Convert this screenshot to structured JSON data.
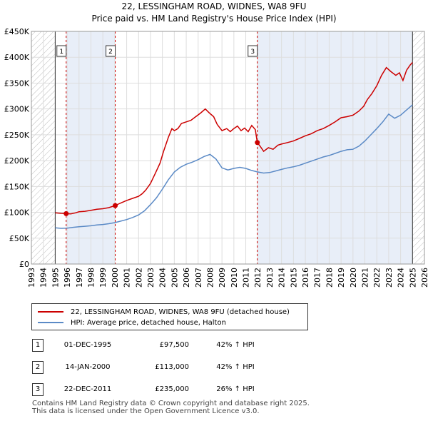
{
  "chart_data": {
    "type": "line",
    "title": "22, LESSINGHAM ROAD, WIDNES, WA8 9FU",
    "subtitle": "Price paid vs. HM Land Registry's House Price Index (HPI)",
    "xlim": [
      1993,
      2026
    ],
    "ylim": [
      0,
      450000
    ],
    "x_ticks": [
      "1993",
      "1994",
      "1995",
      "1996",
      "1997",
      "1998",
      "1999",
      "2000",
      "2001",
      "2002",
      "2003",
      "2004",
      "2005",
      "2006",
      "2007",
      "2008",
      "2009",
      "2010",
      "2011",
      "2012",
      "2013",
      "2014",
      "2015",
      "2016",
      "2017",
      "2018",
      "2019",
      "2020",
      "2021",
      "2022",
      "2023",
      "2024",
      "2025",
      "2026"
    ],
    "y_ticks": [
      {
        "value": 0,
        "label": "£0"
      },
      {
        "value": 50000,
        "label": "£50K"
      },
      {
        "value": 100000,
        "label": "£100K"
      },
      {
        "value": 150000,
        "label": "£150K"
      },
      {
        "value": 200000,
        "label": "£200K"
      },
      {
        "value": 250000,
        "label": "£250K"
      },
      {
        "value": 300000,
        "label": "£300K"
      },
      {
        "value": 350000,
        "label": "£350K"
      },
      {
        "value": 400000,
        "label": "£400K"
      },
      {
        "value": 450000,
        "label": "£450K"
      }
    ],
    "hatched_ranges": [
      [
        1993,
        1995.0
      ],
      [
        2025.0,
        2026
      ]
    ],
    "shaded_ranges": [
      [
        1995.92,
        2000.04
      ],
      [
        2011.97,
        2025.0
      ]
    ],
    "series": [
      {
        "name": "22, LESSINGHAM ROAD, WIDNES, WA8 9FU (detached house)",
        "color": "#cc0000",
        "x": [
          1995.0,
          1995.5,
          1995.92,
          1996.3,
          1996.7,
          1997.0,
          1997.5,
          1998.0,
          1998.5,
          1999.0,
          1999.5,
          2000.04,
          2000.3,
          2000.6,
          2001.0,
          2001.5,
          2002.0,
          2002.3,
          2002.6,
          2003.0,
          2003.4,
          2003.8,
          2004.1,
          2004.5,
          2004.8,
          2005.0,
          2005.3,
          2005.6,
          2006.0,
          2006.4,
          2006.8,
          2007.2,
          2007.6,
          2007.9,
          2008.3,
          2008.6,
          2009.0,
          2009.4,
          2009.7,
          2010.0,
          2010.3,
          2010.6,
          2010.9,
          2011.2,
          2011.5,
          2011.8,
          2011.97,
          2012.2,
          2012.5,
          2012.9,
          2013.3,
          2013.7,
          2014.0,
          2014.5,
          2015.0,
          2015.5,
          2016.0,
          2016.5,
          2017.0,
          2017.5,
          2018.0,
          2018.5,
          2019.0,
          2019.5,
          2020.0,
          2020.5,
          2020.9,
          2021.2,
          2021.6,
          2022.0,
          2022.4,
          2022.8,
          2023.2,
          2023.6,
          2023.9,
          2024.2,
          2024.5,
          2024.8,
          2025.0
        ],
        "values": [
          99000,
          98000,
          97500,
          97000,
          99000,
          101000,
          102000,
          104000,
          106000,
          107000,
          109000,
          113000,
          116000,
          119000,
          123000,
          127000,
          131000,
          136000,
          143000,
          156000,
          175000,
          195000,
          218000,
          245000,
          262000,
          258000,
          262000,
          272000,
          275000,
          278000,
          285000,
          292000,
          300000,
          293000,
          285000,
          270000,
          258000,
          262000,
          256000,
          262000,
          267000,
          258000,
          263000,
          256000,
          268000,
          260000,
          235000,
          228000,
          218000,
          225000,
          222000,
          230000,
          232000,
          235000,
          238000,
          243000,
          248000,
          252000,
          258000,
          262000,
          268000,
          275000,
          283000,
          285000,
          288000,
          296000,
          305000,
          318000,
          330000,
          345000,
          365000,
          380000,
          372000,
          365000,
          370000,
          355000,
          375000,
          385000,
          390000
        ]
      },
      {
        "name": "HPI: Average price, detached house, Halton",
        "color": "#5b8ac6",
        "x": [
          1995.0,
          1995.5,
          1996.0,
          1996.5,
          1997.0,
          1997.5,
          1998.0,
          1998.5,
          1999.0,
          1999.5,
          2000.0,
          2000.5,
          2001.0,
          2001.5,
          2002.0,
          2002.5,
          2003.0,
          2003.5,
          2004.0,
          2004.5,
          2005.0,
          2005.5,
          2006.0,
          2006.5,
          2007.0,
          2007.5,
          2008.0,
          2008.5,
          2009.0,
          2009.5,
          2010.0,
          2010.5,
          2011.0,
          2011.5,
          2012.0,
          2012.5,
          2013.0,
          2013.5,
          2014.0,
          2014.5,
          2015.0,
          2015.5,
          2016.0,
          2016.5,
          2017.0,
          2017.5,
          2018.0,
          2018.5,
          2019.0,
          2019.5,
          2020.0,
          2020.5,
          2021.0,
          2021.5,
          2022.0,
          2022.5,
          2023.0,
          2023.5,
          2024.0,
          2024.5,
          2025.0
        ],
        "values": [
          70000,
          69000,
          69500,
          71000,
          72000,
          73000,
          74000,
          75500,
          76500,
          78000,
          80000,
          83000,
          86000,
          90000,
          95000,
          103000,
          115000,
          128000,
          145000,
          163000,
          178000,
          187000,
          193000,
          197000,
          202000,
          208000,
          212000,
          203000,
          186000,
          182000,
          185000,
          187000,
          185000,
          181000,
          178000,
          176000,
          177000,
          180000,
          183000,
          186000,
          188000,
          191000,
          195000,
          199000,
          203000,
          207000,
          210000,
          214000,
          218000,
          221000,
          222000,
          228000,
          238000,
          250000,
          262000,
          275000,
          290000,
          282000,
          288000,
          298000,
          308000
        ]
      }
    ],
    "sales": [
      {
        "label": "1",
        "x": 1995.92,
        "value": 97500
      },
      {
        "label": "2",
        "x": 2000.04,
        "value": 113000
      },
      {
        "label": "3",
        "x": 2011.97,
        "value": 235000
      }
    ]
  },
  "legend": {
    "property": "22, LESSINGHAM ROAD, WIDNES, WA8 9FU (detached house)",
    "hpi": "HPI: Average price, detached house, Halton",
    "property_color": "#cc0000",
    "hpi_color": "#5b8ac6"
  },
  "sales_table": [
    {
      "num": "1",
      "date": "01-DEC-1995",
      "price": "£97,500",
      "hpi": "42% ↑ HPI"
    },
    {
      "num": "2",
      "date": "14-JAN-2000",
      "price": "£113,000",
      "hpi": "42% ↑ HPI"
    },
    {
      "num": "3",
      "date": "22-DEC-2011",
      "price": "£235,000",
      "hpi": "26% ↑ HPI"
    }
  ],
  "footer": {
    "line1": "Contains HM Land Registry data © Crown copyright and database right 2025.",
    "line2": "This data is licensed under the Open Government Licence v3.0."
  }
}
